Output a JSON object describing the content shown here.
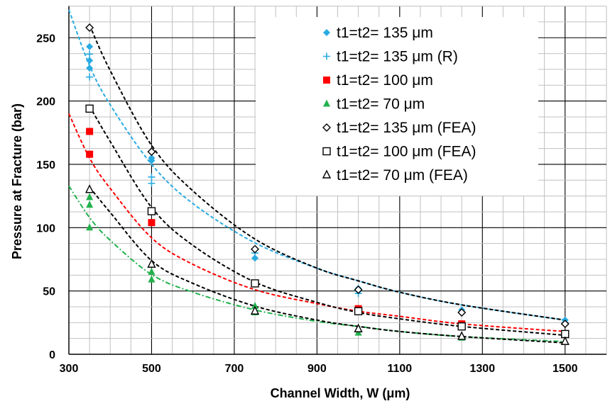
{
  "chart_data": {
    "type": "scatter",
    "xlabel": "Channel Width, W (μm)",
    "ylabel": "Pressure at Fracture (bar)",
    "xlim": [
      300,
      1600
    ],
    "ylim": [
      0,
      275
    ],
    "xticks": [
      300,
      500,
      700,
      900,
      1100,
      1300,
      1500
    ],
    "yticks": [
      0,
      50,
      100,
      150,
      200,
      250
    ],
    "grid": true,
    "legend_position": "top-right",
    "series": [
      {
        "name": "t1=t2= 135 μm",
        "marker": "diamond-filled",
        "color": "#29abe2",
        "points": [
          [
            350,
            243
          ],
          [
            350,
            232
          ],
          [
            350,
            226
          ],
          [
            500,
            153
          ],
          [
            500,
            155
          ],
          [
            750,
            76
          ],
          [
            750,
            83
          ],
          [
            1000,
            52
          ],
          [
            1000,
            50
          ],
          [
            1250,
            35
          ],
          [
            1500,
            27
          ]
        ]
      },
      {
        "name": "t1=t2= 135 μm (R)",
        "marker": "plus",
        "color": "#29abe2",
        "points": [
          [
            350,
            237
          ],
          [
            350,
            219
          ],
          [
            500,
            140
          ],
          [
            500,
            135
          ],
          [
            750,
            80
          ],
          [
            1000,
            48
          ],
          [
            1250,
            33
          ],
          [
            1500,
            25
          ]
        ]
      },
      {
        "name": "t1=t2= 100 μm",
        "marker": "square-filled",
        "color": "#ff0000",
        "points": [
          [
            350,
            176
          ],
          [
            350,
            158
          ],
          [
            500,
            104
          ],
          [
            750,
            56
          ],
          [
            1000,
            36
          ],
          [
            1250,
            24
          ],
          [
            1500,
            16
          ]
        ]
      },
      {
        "name": "t1=t2= 70 μm",
        "marker": "triangle-filled",
        "color": "#22b14c",
        "points": [
          [
            350,
            124
          ],
          [
            350,
            118
          ],
          [
            350,
            100
          ],
          [
            500,
            65
          ],
          [
            500,
            59
          ],
          [
            750,
            38
          ],
          [
            750,
            33
          ],
          [
            1000,
            17
          ],
          [
            1250,
            13
          ],
          [
            1500,
            10
          ]
        ]
      },
      {
        "name": "t1=t2= 135 μm (FEA)",
        "marker": "diamond-open",
        "color": "#000000",
        "points": [
          [
            350,
            258
          ],
          [
            500,
            160
          ],
          [
            750,
            83
          ],
          [
            1000,
            51
          ],
          [
            1250,
            33
          ],
          [
            1500,
            24
          ]
        ]
      },
      {
        "name": "t1=t2= 100 μm (FEA)",
        "marker": "square-open",
        "color": "#000000",
        "points": [
          [
            350,
            194
          ],
          [
            500,
            113
          ],
          [
            750,
            56
          ],
          [
            1000,
            34
          ],
          [
            1250,
            22
          ],
          [
            1500,
            16
          ]
        ]
      },
      {
        "name": "t1=t2= 70 μm (FEA)",
        "marker": "triangle-open",
        "color": "#000000",
        "points": [
          [
            350,
            130
          ],
          [
            500,
            71
          ],
          [
            750,
            34
          ],
          [
            1000,
            20
          ],
          [
            1250,
            14
          ],
          [
            1500,
            10
          ]
        ]
      }
    ],
    "trendlines": [
      {
        "color": "#29abe2",
        "dash": "dashed",
        "points": [
          [
            300,
            272
          ],
          [
            350,
            228
          ],
          [
            400,
            197
          ],
          [
            500,
            150
          ],
          [
            600,
            119
          ],
          [
            750,
            88
          ],
          [
            900,
            68
          ],
          [
            1000,
            58
          ],
          [
            1100,
            49
          ],
          [
            1250,
            39
          ],
          [
            1500,
            27
          ]
        ]
      },
      {
        "color": "#000000",
        "dash": "dashed",
        "points": [
          [
            350,
            260
          ],
          [
            400,
            224
          ],
          [
            500,
            165
          ],
          [
            600,
            129
          ],
          [
            750,
            91
          ],
          [
            900,
            68
          ],
          [
            1000,
            58
          ],
          [
            1100,
            49
          ],
          [
            1250,
            39
          ],
          [
            1500,
            27
          ]
        ]
      },
      {
        "color": "#ff0000",
        "dash": "dashed",
        "points": [
          [
            300,
            190
          ],
          [
            350,
            155
          ],
          [
            400,
            131
          ],
          [
            500,
            92
          ],
          [
            600,
            71
          ],
          [
            750,
            51
          ],
          [
            900,
            40
          ],
          [
            1000,
            34
          ],
          [
            1100,
            30
          ],
          [
            1250,
            24
          ],
          [
            1500,
            18
          ]
        ]
      },
      {
        "color": "#000000",
        "dash": "dashed",
        "points": [
          [
            350,
            196
          ],
          [
            400,
            168
          ],
          [
            500,
            116
          ],
          [
            600,
            86
          ],
          [
            750,
            57
          ],
          [
            900,
            41
          ],
          [
            1000,
            33
          ],
          [
            1100,
            28
          ],
          [
            1250,
            22
          ],
          [
            1500,
            15
          ]
        ]
      },
      {
        "color": "#22b14c",
        "dash": "dashdot",
        "points": [
          [
            300,
            133
          ],
          [
            350,
            108
          ],
          [
            400,
            90
          ],
          [
            500,
            63
          ],
          [
            600,
            49
          ],
          [
            750,
            35
          ],
          [
            900,
            26
          ],
          [
            1000,
            22
          ],
          [
            1100,
            18
          ],
          [
            1250,
            14
          ],
          [
            1500,
            10
          ]
        ]
      },
      {
        "color": "#000000",
        "dash": "dashed",
        "points": [
          [
            350,
            132
          ],
          [
            400,
            112
          ],
          [
            500,
            74
          ],
          [
            600,
            56
          ],
          [
            750,
            38
          ],
          [
            900,
            27
          ],
          [
            1000,
            22
          ],
          [
            1100,
            18
          ],
          [
            1250,
            14
          ],
          [
            1500,
            9
          ]
        ]
      }
    ]
  }
}
